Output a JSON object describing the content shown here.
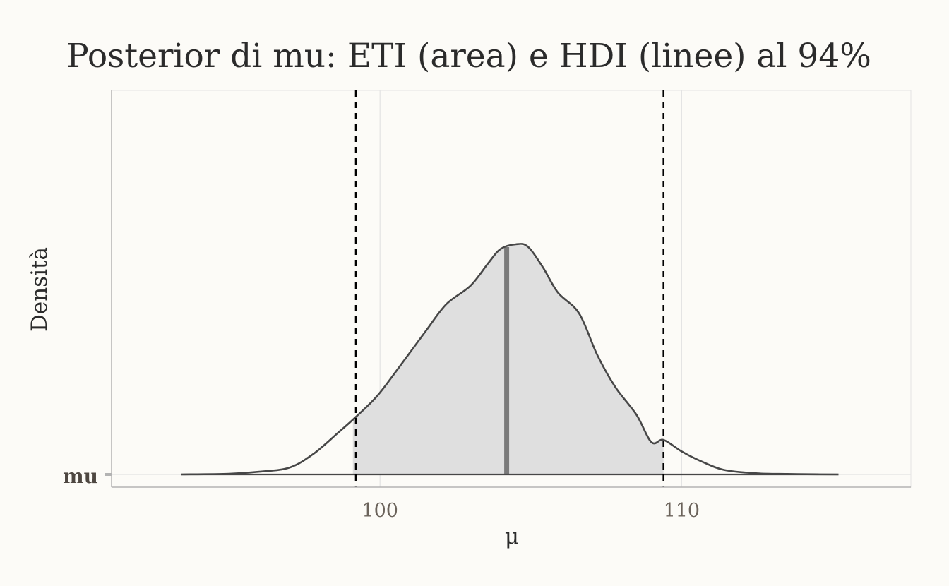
{
  "chart_data": {
    "type": "area",
    "title": "Posterior di mu: ETI (area) e HDI (linee) al 94%",
    "xlabel": "μ",
    "ylabel": "Densità",
    "y_category": "mu",
    "xlim": [
      91.1,
      117.6
    ],
    "x_ticks": [
      100,
      110
    ],
    "x_tick_labels": [
      "100",
      "110"
    ],
    "grid": true,
    "density": {
      "x": [
        93.4,
        95.0,
        96.0,
        97.0,
        97.8,
        98.6,
        99.2,
        99.9,
        100.6,
        101.5,
        102.2,
        103.0,
        103.6,
        104.0,
        104.5,
        104.9,
        105.4,
        105.9,
        106.6,
        107.2,
        107.8,
        108.5,
        109.0,
        109.4,
        110.0,
        110.6,
        111.4,
        112.5,
        113.5,
        114.5,
        115.2
      ],
      "y": [
        0.0,
        0.003,
        0.012,
        0.03,
        0.09,
        0.18,
        0.25,
        0.34,
        0.46,
        0.62,
        0.74,
        0.82,
        0.92,
        0.98,
        1.0,
        0.99,
        0.9,
        0.79,
        0.7,
        0.52,
        0.38,
        0.26,
        0.14,
        0.15,
        0.1,
        0.06,
        0.02,
        0.005,
        0.002,
        0.0005,
        0.0
      ]
    },
    "eti": {
      "lower": 99.1,
      "upper": 109.4,
      "fill": "#dfdfdf"
    },
    "hdi": {
      "lower": 99.2,
      "upper": 109.4
    },
    "median": 104.2,
    "colors": {
      "background": "#fcfbf7",
      "grid": "#e3e3e3",
      "axis": "#b3b3b3",
      "curve": "#474747",
      "median": "#7a7a7a",
      "hdi_lines": "#000000"
    }
  }
}
